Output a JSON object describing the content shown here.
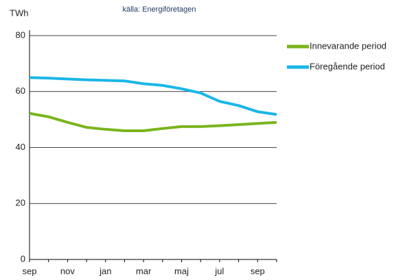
{
  "chart_data": {
    "type": "line",
    "source": "källa: Energiföretagen",
    "y_label": "TWh",
    "categories": [
      "sep",
      null,
      "nov",
      null,
      "jan",
      null,
      "mar",
      null,
      "maj",
      null,
      "jul",
      null,
      "sep",
      null
    ],
    "series": [
      {
        "name": "Innevarande period",
        "color": "#7ab51d",
        "values": [
          52.2,
          51,
          49,
          47.2,
          46.5,
          46,
          46,
          46.8,
          47.5,
          47.5,
          47.8,
          48.2,
          48.6,
          49
        ]
      },
      {
        "name": "Föregående period",
        "color": "#1ab6e8",
        "values": [
          65,
          64.8,
          64.5,
          64.2,
          64,
          63.8,
          62.8,
          62.2,
          61,
          59.5,
          56.5,
          55,
          52.8,
          51.8
        ]
      }
    ],
    "ylim": [
      0,
      80
    ],
    "yticks": [
      0,
      20,
      40,
      60,
      80
    ],
    "grid": true,
    "legend": "right"
  }
}
